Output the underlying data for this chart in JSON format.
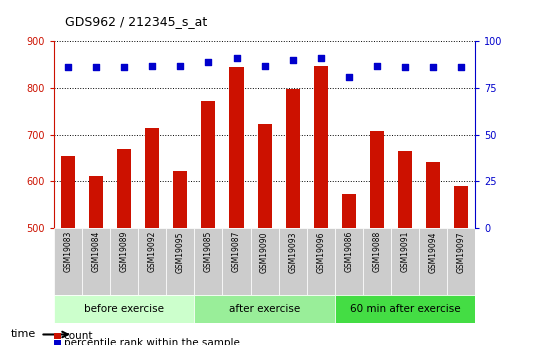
{
  "title": "GDS962 / 212345_s_at",
  "samples": [
    "GSM19083",
    "GSM19084",
    "GSM19089",
    "GSM19092",
    "GSM19095",
    "GSM19085",
    "GSM19087",
    "GSM19090",
    "GSM19093",
    "GSM19096",
    "GSM19086",
    "GSM19088",
    "GSM19091",
    "GSM19094",
    "GSM19097"
  ],
  "counts": [
    655,
    610,
    670,
    715,
    622,
    773,
    845,
    723,
    797,
    848,
    572,
    707,
    665,
    640,
    590
  ],
  "percentile_ranks": [
    86,
    86,
    86,
    87,
    87,
    89,
    91,
    87,
    90,
    91,
    81,
    87,
    86,
    86,
    86
  ],
  "groups": [
    {
      "label": "before exercise",
      "start": 0,
      "end": 5,
      "color": "#ccffcc"
    },
    {
      "label": "after exercise",
      "start": 5,
      "end": 10,
      "color": "#99ee99"
    },
    {
      "label": "60 min after exercise",
      "start": 10,
      "end": 15,
      "color": "#44dd44"
    }
  ],
  "ylim_left": [
    500,
    900
  ],
  "ylim_right": [
    0,
    100
  ],
  "yticks_left": [
    500,
    600,
    700,
    800,
    900
  ],
  "yticks_right": [
    0,
    25,
    50,
    75,
    100
  ],
  "bar_color": "#cc1100",
  "dot_color": "#0000cc",
  "grid_color": "#000000",
  "bg_color": "#ffffff",
  "tick_color_left": "#cc1100",
  "tick_color_right": "#0000cc",
  "bar_width": 0.5,
  "sample_bg": "#cccccc",
  "fig_width": 5.4,
  "fig_height": 3.45
}
